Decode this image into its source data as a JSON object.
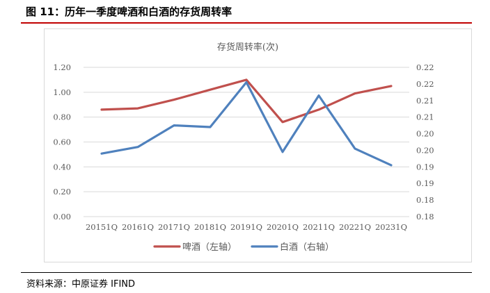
{
  "figure": {
    "title": "图 11：历年一季度啤酒和白酒的存货周转率",
    "source": "资料来源：中原证券 IFIND"
  },
  "chart_data": {
    "type": "line",
    "title": "存货周转率(次)",
    "categories": [
      "20151Q",
      "20161Q",
      "20171Q",
      "20181Q",
      "20191Q",
      "20201Q",
      "20211Q",
      "20221Q",
      "20231Q"
    ],
    "series": [
      {
        "name": "啤酒（左轴）",
        "axis": "left",
        "color": "#c0504d",
        "values": [
          0.86,
          0.87,
          0.94,
          1.02,
          1.1,
          0.76,
          0.86,
          0.99,
          1.05
        ]
      },
      {
        "name": "白酒（右轴）",
        "axis": "right",
        "color": "#4f81bd",
        "values": [
          0.199,
          0.201,
          0.2075,
          0.207,
          0.2205,
          0.1995,
          0.2165,
          0.2005,
          0.1955
        ]
      }
    ],
    "y_left": {
      "min": 0,
      "max": 1.2,
      "ticks": [
        "0.00",
        "0.20",
        "0.40",
        "0.60",
        "0.80",
        "1.00",
        "1.20"
      ]
    },
    "y_right": {
      "min": 0.18,
      "max": 0.225,
      "ticks": [
        "0.18",
        "0.18",
        "0.19",
        "0.19",
        "0.20",
        "0.20",
        "0.21",
        "0.21",
        "0.22",
        "0.22"
      ]
    },
    "grid": "horizontal",
    "legend": "bottom"
  }
}
